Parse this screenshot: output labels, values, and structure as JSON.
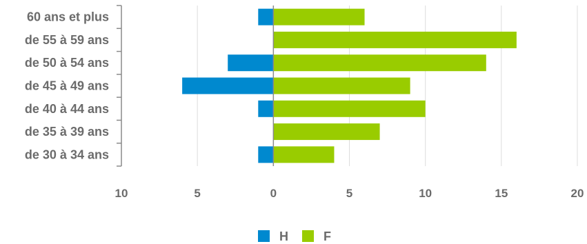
{
  "chart_data": {
    "type": "bar",
    "orientation": "horizontal-diverging",
    "categories": [
      "60 ans et plus",
      "de 55 à 59 ans",
      "de 50 à 54 ans",
      "de 45 à 49 ans",
      "de 40 à 44 ans",
      "de 35 à 39 ans",
      "de 30 à 34 ans"
    ],
    "series": [
      {
        "name": "H",
        "color": "#0089CF",
        "values": [
          1,
          0,
          3,
          6,
          1,
          0,
          1
        ]
      },
      {
        "name": "F",
        "color": "#99CC00",
        "values": [
          6,
          16,
          14,
          9,
          10,
          7,
          4
        ]
      }
    ],
    "x_range": [
      -10,
      20
    ],
    "x_ticks": [
      -10,
      -5,
      0,
      5,
      10,
      15,
      20
    ],
    "x_tick_labels": [
      "10",
      "5",
      "0",
      "5",
      "10",
      "15",
      "20"
    ],
    "grid": "vertical",
    "legend_position": "bottom-center"
  }
}
